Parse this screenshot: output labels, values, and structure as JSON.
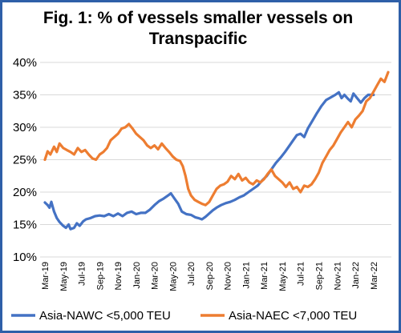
{
  "chart_data": {
    "type": "line",
    "title": "Fig. 1: % of vessels smaller vessels on Transpacific",
    "xlabel": "",
    "ylabel": "",
    "ylim": [
      0.1,
      0.4
    ],
    "yticks": [
      "10%",
      "15%",
      "20%",
      "25%",
      "30%",
      "35%",
      "40%"
    ],
    "x_tick_labels": [
      "Mar-19",
      "May-19",
      "Jul-19",
      "Sep-19",
      "Nov-19",
      "Jan-20",
      "Mar-20",
      "May-20",
      "Jul-20",
      "Sep-20",
      "Nov-20",
      "Jan-21",
      "Mar-21",
      "May-21",
      "Jul-21",
      "Sep-21",
      "Nov-21",
      "Jan-22",
      "Mar-22"
    ],
    "x_months_range": [
      0,
      36
    ],
    "grid": "horizontal",
    "legend_position": "bottom",
    "series": [
      {
        "name": "Asia-NAWC <5,000 TEU",
        "color": "#4472c4",
        "points": [
          [
            0,
            0.184
          ],
          [
            0.3,
            0.18
          ],
          [
            0.5,
            0.176
          ],
          [
            0.7,
            0.185
          ],
          [
            1.0,
            0.17
          ],
          [
            1.3,
            0.16
          ],
          [
            1.6,
            0.154
          ],
          [
            2.0,
            0.148
          ],
          [
            2.3,
            0.145
          ],
          [
            2.6,
            0.15
          ],
          [
            2.8,
            0.143
          ],
          [
            3.2,
            0.145
          ],
          [
            3.5,
            0.152
          ],
          [
            3.8,
            0.148
          ],
          [
            4.2,
            0.155
          ],
          [
            4.5,
            0.158
          ],
          [
            5.0,
            0.16
          ],
          [
            5.5,
            0.163
          ],
          [
            6.0,
            0.164
          ],
          [
            6.5,
            0.163
          ],
          [
            7.0,
            0.166
          ],
          [
            7.5,
            0.163
          ],
          [
            8.0,
            0.167
          ],
          [
            8.5,
            0.163
          ],
          [
            9.0,
            0.168
          ],
          [
            9.5,
            0.17
          ],
          [
            10.0,
            0.166
          ],
          [
            10.5,
            0.168
          ],
          [
            11.0,
            0.168
          ],
          [
            11.5,
            0.173
          ],
          [
            12.0,
            0.18
          ],
          [
            12.5,
            0.186
          ],
          [
            13.0,
            0.19
          ],
          [
            13.5,
            0.195
          ],
          [
            13.8,
            0.198
          ],
          [
            14.2,
            0.19
          ],
          [
            14.6,
            0.182
          ],
          [
            15.0,
            0.17
          ],
          [
            15.5,
            0.166
          ],
          [
            16.0,
            0.165
          ],
          [
            16.5,
            0.161
          ],
          [
            16.8,
            0.16
          ],
          [
            17.2,
            0.158
          ],
          [
            17.6,
            0.162
          ],
          [
            18.0,
            0.167
          ],
          [
            18.4,
            0.172
          ],
          [
            18.8,
            0.176
          ],
          [
            19.3,
            0.18
          ],
          [
            19.8,
            0.183
          ],
          [
            20.3,
            0.185
          ],
          [
            20.8,
            0.188
          ],
          [
            21.3,
            0.192
          ],
          [
            21.8,
            0.195
          ],
          [
            22.3,
            0.2
          ],
          [
            22.8,
            0.205
          ],
          [
            23.3,
            0.21
          ],
          [
            23.8,
            0.218
          ],
          [
            24.3,
            0.225
          ],
          [
            24.8,
            0.235
          ],
          [
            25.3,
            0.245
          ],
          [
            25.8,
            0.253
          ],
          [
            26.3,
            0.262
          ],
          [
            26.8,
            0.272
          ],
          [
            27.2,
            0.28
          ],
          [
            27.6,
            0.288
          ],
          [
            28.0,
            0.29
          ],
          [
            28.4,
            0.285
          ],
          [
            28.8,
            0.298
          ],
          [
            29.3,
            0.31
          ],
          [
            29.8,
            0.322
          ],
          [
            30.3,
            0.333
          ],
          [
            30.8,
            0.342
          ],
          [
            31.3,
            0.346
          ],
          [
            31.8,
            0.35
          ],
          [
            32.2,
            0.354
          ],
          [
            32.5,
            0.345
          ],
          [
            32.8,
            0.35
          ],
          [
            33.2,
            0.344
          ],
          [
            33.5,
            0.34
          ],
          [
            33.8,
            0.352
          ],
          [
            34.2,
            0.345
          ],
          [
            34.6,
            0.338
          ],
          [
            35.0,
            0.345
          ],
          [
            35.4,
            0.35
          ],
          [
            36.0,
            0.35
          ]
        ]
      },
      {
        "name": "Asia-NAEC <7,000 TEU",
        "color": "#ed7d31",
        "points": [
          [
            0,
            0.25
          ],
          [
            0.3,
            0.263
          ],
          [
            0.6,
            0.258
          ],
          [
            1.0,
            0.27
          ],
          [
            1.3,
            0.262
          ],
          [
            1.6,
            0.275
          ],
          [
            2.0,
            0.268
          ],
          [
            2.4,
            0.265
          ],
          [
            2.8,
            0.262
          ],
          [
            3.2,
            0.258
          ],
          [
            3.6,
            0.268
          ],
          [
            4.0,
            0.262
          ],
          [
            4.4,
            0.265
          ],
          [
            4.8,
            0.258
          ],
          [
            5.2,
            0.252
          ],
          [
            5.6,
            0.25
          ],
          [
            6.0,
            0.258
          ],
          [
            6.4,
            0.262
          ],
          [
            6.8,
            0.268
          ],
          [
            7.2,
            0.28
          ],
          [
            7.6,
            0.285
          ],
          [
            8.0,
            0.29
          ],
          [
            8.4,
            0.298
          ],
          [
            8.8,
            0.3
          ],
          [
            9.2,
            0.305
          ],
          [
            9.6,
            0.298
          ],
          [
            10.0,
            0.29
          ],
          [
            10.4,
            0.285
          ],
          [
            10.8,
            0.28
          ],
          [
            11.2,
            0.272
          ],
          [
            11.6,
            0.268
          ],
          [
            12.0,
            0.272
          ],
          [
            12.4,
            0.266
          ],
          [
            12.8,
            0.275
          ],
          [
            13.2,
            0.268
          ],
          [
            13.6,
            0.262
          ],
          [
            14.0,
            0.255
          ],
          [
            14.4,
            0.25
          ],
          [
            14.8,
            0.248
          ],
          [
            15.1,
            0.24
          ],
          [
            15.4,
            0.225
          ],
          [
            15.7,
            0.205
          ],
          [
            16.0,
            0.195
          ],
          [
            16.4,
            0.188
          ],
          [
            16.8,
            0.185
          ],
          [
            17.2,
            0.182
          ],
          [
            17.6,
            0.18
          ],
          [
            18.0,
            0.185
          ],
          [
            18.4,
            0.195
          ],
          [
            18.8,
            0.205
          ],
          [
            19.2,
            0.21
          ],
          [
            19.6,
            0.212
          ],
          [
            20.0,
            0.216
          ],
          [
            20.4,
            0.225
          ],
          [
            20.8,
            0.22
          ],
          [
            21.2,
            0.228
          ],
          [
            21.6,
            0.218
          ],
          [
            22.0,
            0.222
          ],
          [
            22.4,
            0.215
          ],
          [
            22.8,
            0.212
          ],
          [
            23.2,
            0.218
          ],
          [
            23.6,
            0.215
          ],
          [
            24.0,
            0.22
          ],
          [
            24.4,
            0.228
          ],
          [
            24.8,
            0.235
          ],
          [
            25.2,
            0.225
          ],
          [
            25.6,
            0.22
          ],
          [
            26.0,
            0.215
          ],
          [
            26.4,
            0.208
          ],
          [
            26.8,
            0.215
          ],
          [
            27.2,
            0.205
          ],
          [
            27.6,
            0.208
          ],
          [
            28.0,
            0.2
          ],
          [
            28.4,
            0.21
          ],
          [
            28.8,
            0.208
          ],
          [
            29.2,
            0.212
          ],
          [
            29.6,
            0.22
          ],
          [
            30.0,
            0.23
          ],
          [
            30.4,
            0.245
          ],
          [
            30.8,
            0.255
          ],
          [
            31.2,
            0.265
          ],
          [
            31.6,
            0.272
          ],
          [
            32.0,
            0.282
          ],
          [
            32.4,
            0.292
          ],
          [
            32.8,
            0.3
          ],
          [
            33.2,
            0.308
          ],
          [
            33.6,
            0.3
          ],
          [
            34.0,
            0.312
          ],
          [
            34.4,
            0.318
          ],
          [
            34.8,
            0.325
          ],
          [
            35.2,
            0.34
          ],
          [
            35.6,
            0.345
          ],
          [
            36.0,
            0.355
          ],
          [
            36.4,
            0.365
          ],
          [
            36.8,
            0.375
          ],
          [
            37.2,
            0.37
          ],
          [
            37.6,
            0.385
          ]
        ]
      }
    ]
  }
}
